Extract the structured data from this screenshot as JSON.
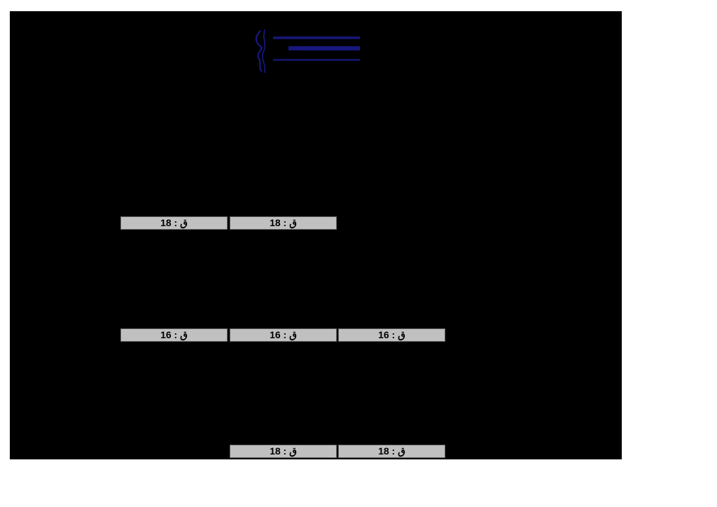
{
  "logo": {
    "lines": [
      "جامعة ابن خلدون",
      "كلية العلوم الإنسانية والاجتماعية",
      "FACULTY OF HUMANITIES & SOCIAL SCIENCES"
    ],
    "color": "#1a1a8c"
  },
  "rows": [
    {
      "cells": [
        "ق : 18",
        "ق : 18"
      ]
    },
    {
      "cells": [
        "ق : 16",
        "ق : 16",
        "ق : 16"
      ]
    },
    {
      "cells": [
        "ق : 18",
        "ق : 18"
      ]
    }
  ]
}
